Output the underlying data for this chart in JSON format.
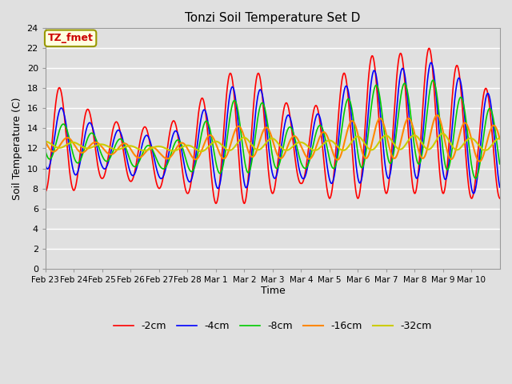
{
  "title": "Tonzi Soil Temperature Set D",
  "xlabel": "Time",
  "ylabel": "Soil Temperature (C)",
  "annotation": "TZ_fmet",
  "ylim": [
    0,
    24
  ],
  "yticks": [
    0,
    2,
    4,
    6,
    8,
    10,
    12,
    14,
    16,
    18,
    20,
    22,
    24
  ],
  "xtick_labels": [
    "Feb 23",
    "Feb 24",
    "Feb 25",
    "Feb 26",
    "Feb 27",
    "Feb 28",
    "Mar 1",
    "Mar 2",
    "Mar 3",
    "Mar 4",
    "Mar 5",
    "Mar 6",
    "Mar 7",
    "Mar 8",
    "Mar 9",
    "Mar 10"
  ],
  "n_days": 16,
  "points_per_day": 96,
  "series": [
    {
      "label": "-2cm",
      "color": "#ff0000",
      "amplitude": [
        5.8,
        4.5,
        3.0,
        2.8,
        3.0,
        4.0,
        6.0,
        7.0,
        5.5,
        3.0,
        5.5,
        7.0,
        7.0,
        7.0,
        7.5,
        5.5
      ],
      "baseline": [
        13.5,
        12.3,
        12.0,
        11.5,
        11.0,
        11.5,
        12.5,
        13.5,
        13.0,
        11.5,
        12.5,
        14.0,
        14.5,
        14.5,
        15.0,
        12.5
      ],
      "phase_shift": 0.0,
      "linewidth": 1.2
    },
    {
      "label": "-4cm",
      "color": "#0000ff",
      "amplitude": [
        3.5,
        3.0,
        2.0,
        2.2,
        2.0,
        2.8,
        4.5,
        5.5,
        4.0,
        2.5,
        4.0,
        5.5,
        5.5,
        5.5,
        6.0,
        5.0
      ],
      "baseline": [
        13.5,
        12.3,
        12.0,
        11.5,
        11.0,
        11.5,
        12.5,
        13.5,
        13.0,
        11.5,
        12.5,
        14.0,
        14.5,
        14.5,
        15.0,
        12.5
      ],
      "phase_shift": 0.07,
      "linewidth": 1.2
    },
    {
      "label": "-8cm",
      "color": "#00cc00",
      "amplitude": [
        2.0,
        1.8,
        1.2,
        1.3,
        1.0,
        1.8,
        3.0,
        4.0,
        3.0,
        1.5,
        2.5,
        4.0,
        4.0,
        4.0,
        4.5,
        3.5
      ],
      "baseline": [
        13.0,
        12.3,
        12.0,
        11.5,
        11.0,
        11.5,
        12.5,
        13.5,
        13.0,
        11.5,
        12.5,
        14.0,
        14.5,
        14.5,
        14.5,
        12.5
      ],
      "phase_shift": 0.14,
      "linewidth": 1.2
    },
    {
      "label": "-16cm",
      "color": "#ff8800",
      "amplitude": [
        0.8,
        0.7,
        0.5,
        0.7,
        0.5,
        0.9,
        1.3,
        1.6,
        1.5,
        1.0,
        1.5,
        2.0,
        2.0,
        2.0,
        2.2,
        1.8
      ],
      "baseline": [
        12.5,
        12.3,
        12.0,
        11.8,
        11.5,
        11.8,
        12.2,
        12.8,
        12.5,
        12.0,
        12.3,
        13.0,
        13.0,
        13.0,
        13.2,
        12.5
      ],
      "phase_shift": 0.28,
      "linewidth": 1.5
    },
    {
      "label": "-32cm",
      "color": "#cccc00",
      "amplitude": [
        0.3,
        0.3,
        0.2,
        0.25,
        0.2,
        0.3,
        0.5,
        0.6,
        0.6,
        0.4,
        0.5,
        0.7,
        0.7,
        0.7,
        0.8,
        0.6
      ],
      "baseline": [
        12.4,
        12.3,
        12.2,
        12.0,
        12.0,
        12.0,
        12.2,
        12.5,
        12.4,
        12.2,
        12.3,
        12.5,
        12.6,
        12.6,
        12.7,
        12.4
      ],
      "phase_shift": 0.48,
      "linewidth": 1.5
    }
  ],
  "bg_color": "#e0e0e0",
  "plot_bg_color": "#e0e0e0"
}
